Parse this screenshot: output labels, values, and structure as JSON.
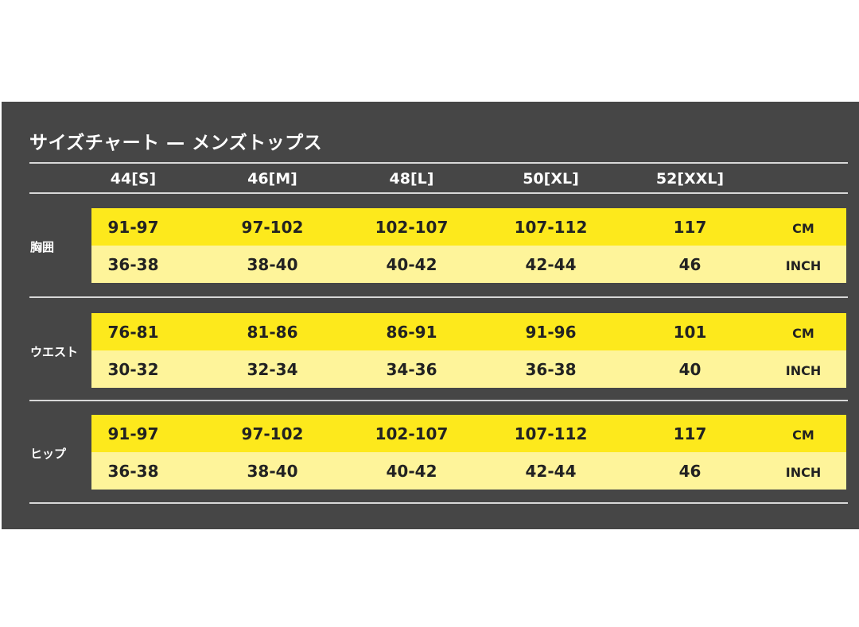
{
  "title": "サイズチャート — メンズトップス",
  "sizes": [
    "44[S]",
    "46[M]",
    "48[L]",
    "50[XL]",
    "52[XXL]"
  ],
  "units": {
    "cm": "CM",
    "inch": "INCH"
  },
  "sections": [
    {
      "label": "胸囲",
      "cm": [
        "91-97",
        "97-102",
        "102-107",
        "107-112",
        "117"
      ],
      "inch": [
        "36-38",
        "38-40",
        "40-42",
        "42-44",
        "46"
      ]
    },
    {
      "label": "ウエスト",
      "cm": [
        "76-81",
        "81-86",
        "86-91",
        "91-96",
        "101"
      ],
      "inch": [
        "30-32",
        "32-34",
        "34-36",
        "36-38",
        "40"
      ]
    },
    {
      "label": "ヒップ",
      "cm": [
        "91-97",
        "97-102",
        "102-107",
        "107-112",
        "117"
      ],
      "inch": [
        "36-38",
        "38-40",
        "40-42",
        "42-44",
        "46"
      ]
    }
  ],
  "colors": {
    "background": "#464646",
    "cm_row": "#fde91c",
    "inch_row": "#fef49a"
  }
}
